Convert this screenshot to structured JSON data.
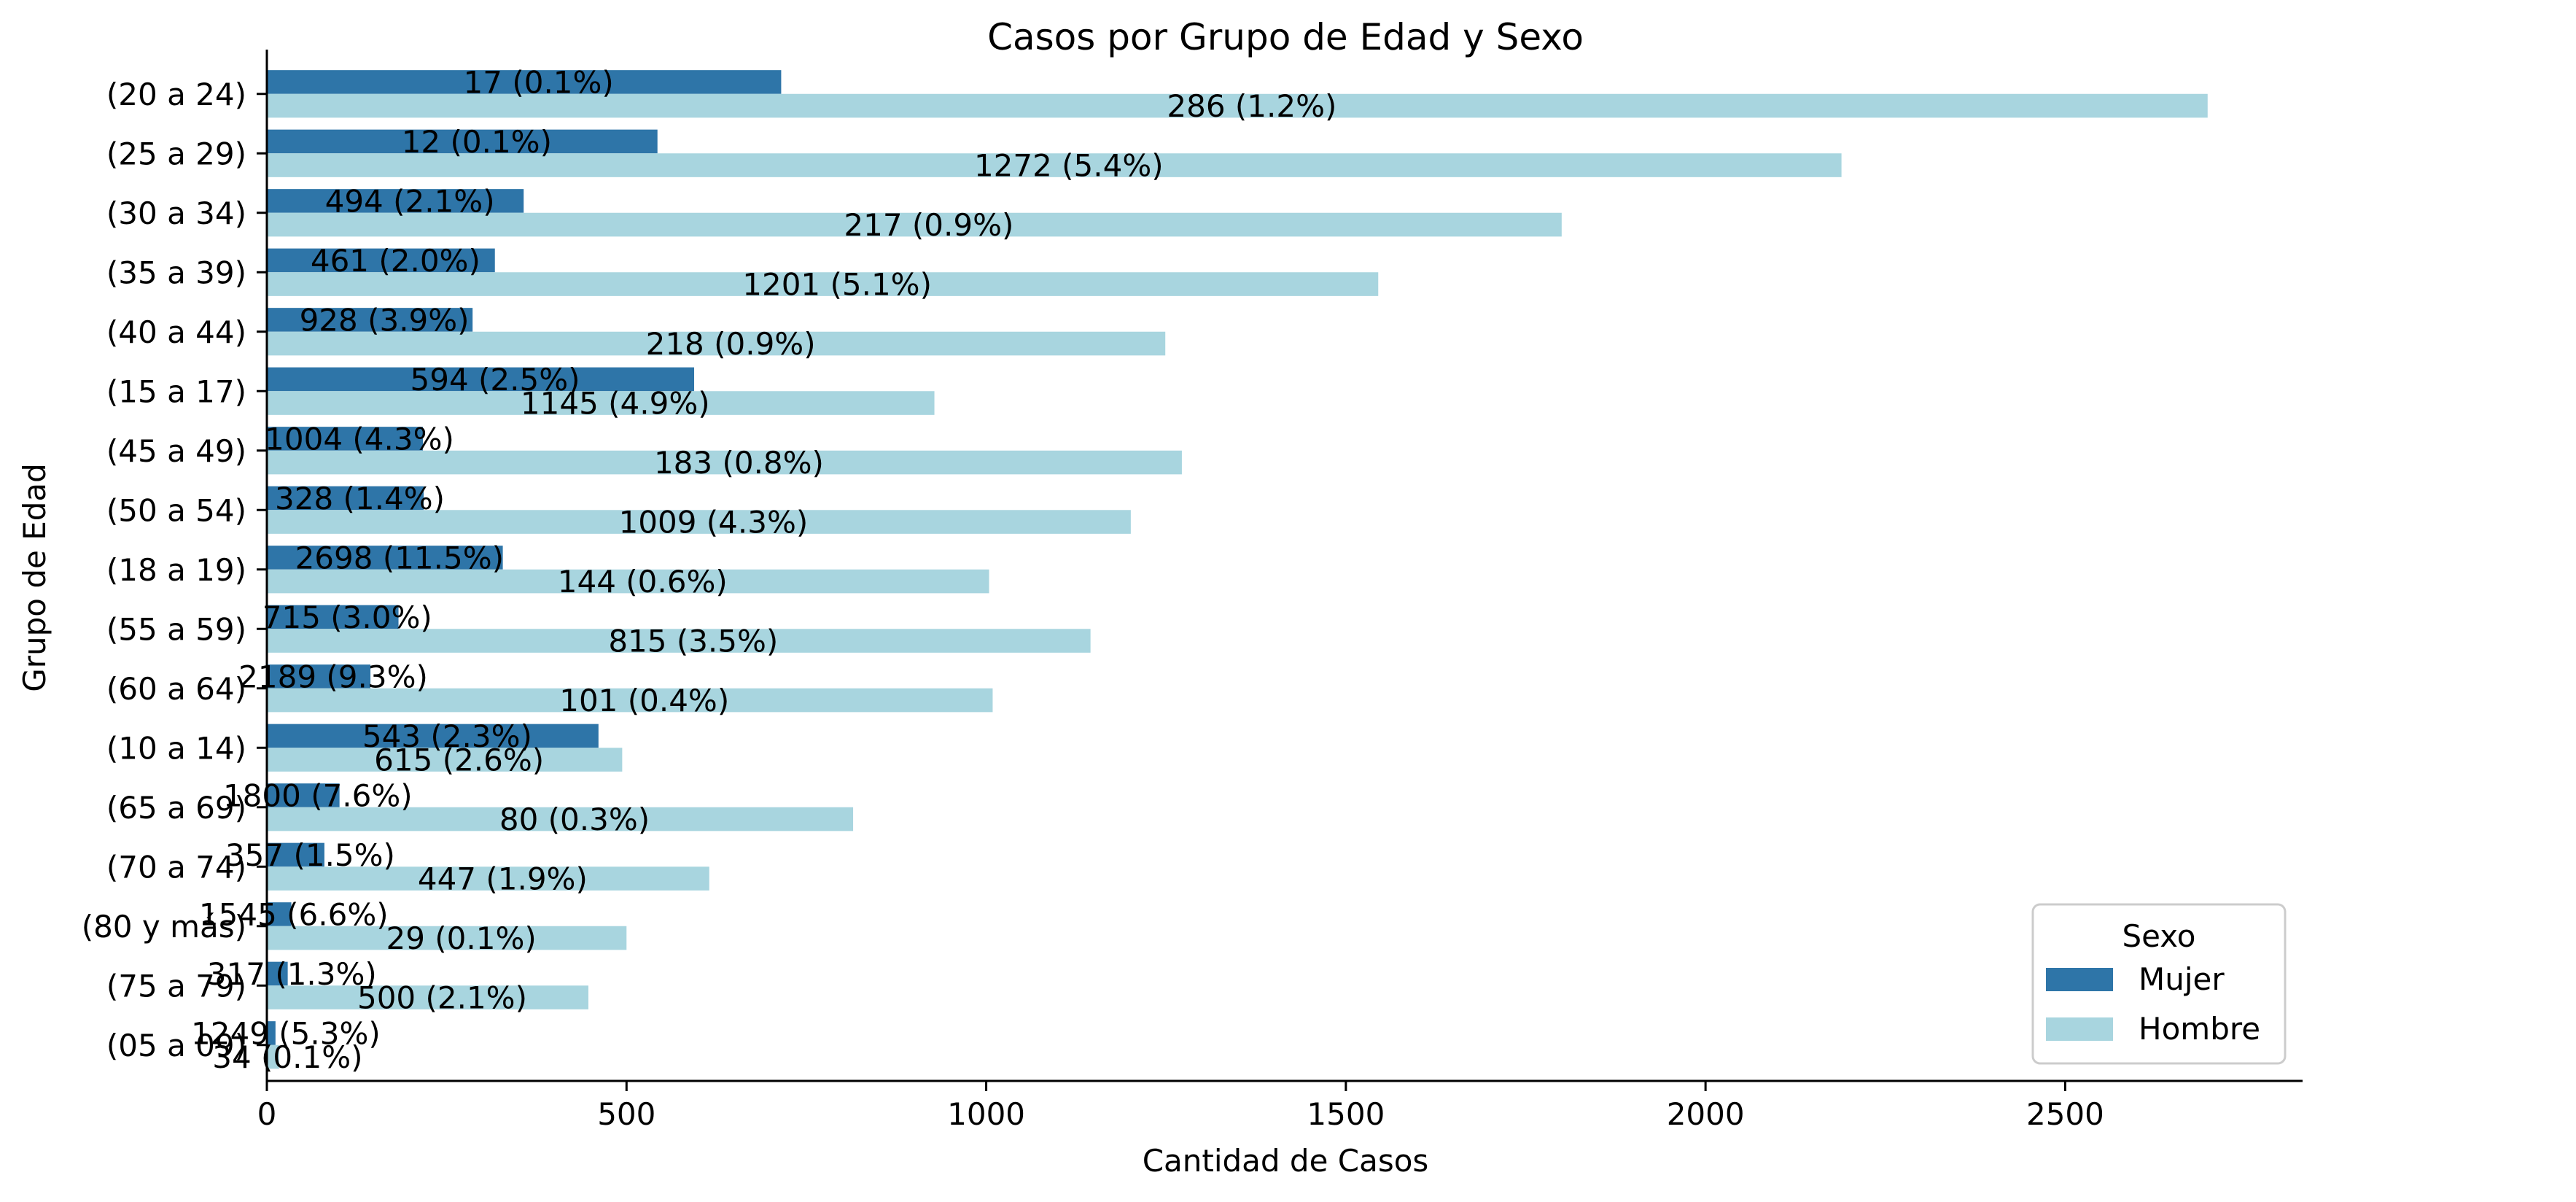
{
  "chart_data": {
    "type": "bar",
    "orientation": "horizontal",
    "title": "Casos por Grupo de Edad y Sexo",
    "xlabel": "Cantidad de Casos",
    "ylabel": "Grupo de Edad",
    "xlim": [
      0,
      2830
    ],
    "xticks": [
      0,
      500,
      1000,
      1500,
      2000,
      2500
    ],
    "grid": false,
    "legend": {
      "title": "Sexo",
      "placement": "lower-right"
    },
    "categories": [
      "(20 a 24)",
      "(25 a 29)",
      "(30 a 34)",
      "(35 a 39)",
      "(40 a 44)",
      "(15 a 17)",
      "(45 a 49)",
      "(50 a 54)",
      "(18 a 19)",
      "(55 a 59)",
      "(60 a 64)",
      "(10 a 14)",
      "(65 a 69)",
      "(70 a 74)",
      "(80 y más)",
      "(75 a 79)",
      "(05 a 09)"
    ],
    "series": [
      {
        "name": "Mujer",
        "color": "#2e75a8",
        "values": [
          715,
          543,
          357,
          317,
          286,
          594,
          217,
          218,
          328,
          183,
          144,
          461,
          101,
          80,
          34,
          29,
          12
        ]
      },
      {
        "name": "Hombre",
        "color": "#a8d5df",
        "values": [
          2698,
          2189,
          1800,
          1545,
          1249,
          928,
          1272,
          1201,
          1004,
          1145,
          1009,
          494,
          815,
          615,
          500,
          447,
          17
        ]
      }
    ],
    "annotations": [
      "17 (0.1%)",
      "12 (0.1%)",
      "494 (2.1%)",
      "461 (2.0%)",
      "928 (3.9%)",
      "594 (2.5%)",
      "1004 (4.3%)",
      "328 (1.4%)",
      "2698 (11.5%)",
      "715 (3.0%)",
      "2189 (9.3%)",
      "543 (2.3%)",
      "1800 (7.6%)",
      "357 (1.5%)",
      "1545 (6.6%)",
      "317 (1.3%)",
      "1249 (5.3%)",
      "286 (1.2%)",
      "1272 (5.4%)",
      "217 (0.9%)",
      "1201 (5.1%)",
      "218 (0.9%)",
      "1145 (4.9%)",
      "183 (0.8%)",
      "1009 (4.3%)",
      "144 (0.6%)",
      "815 (3.5%)",
      "101 (0.4%)",
      "615 (2.6%)",
      "80 (0.3%)",
      "447 (1.9%)",
      "29 (0.1%)",
      "500 (2.1%)",
      "34 (0.1%)"
    ]
  }
}
